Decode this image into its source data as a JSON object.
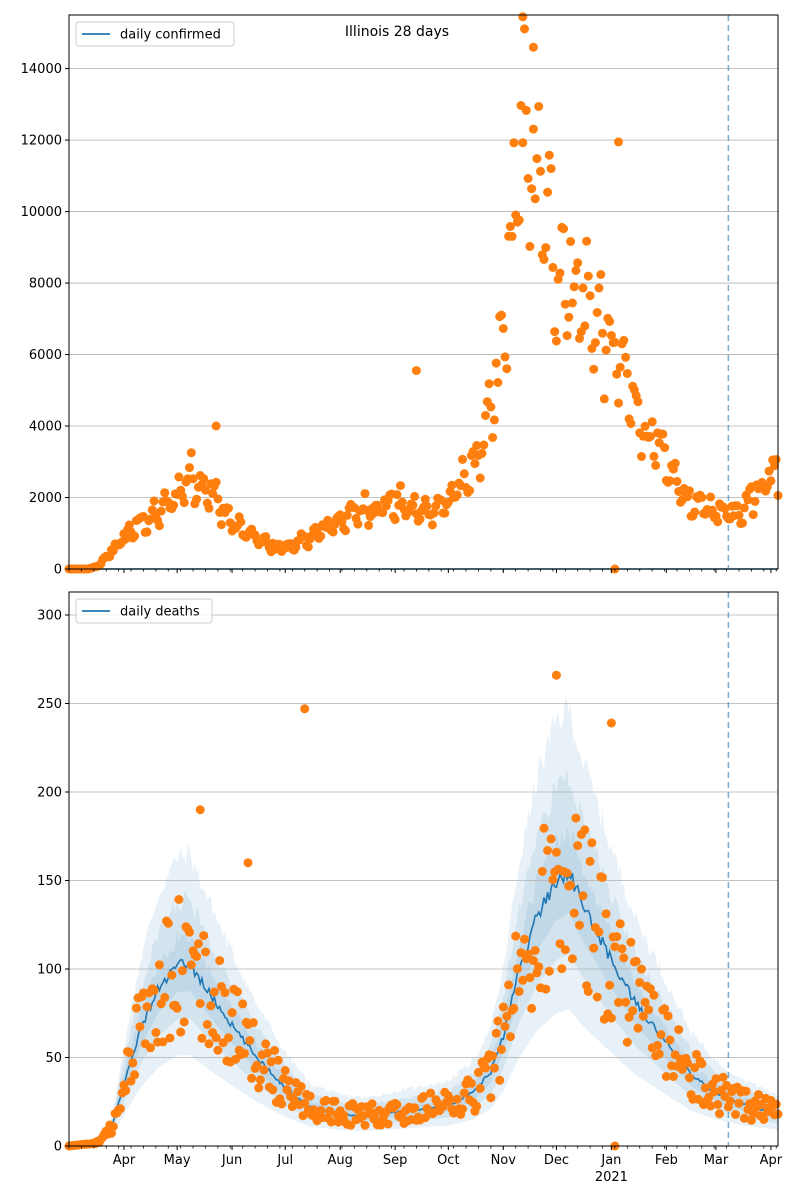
{
  "chart_data": [
    {
      "type": "scatter",
      "title": "Illinois 28 days",
      "legend": {
        "label": "daily confirmed",
        "placement": "top-left"
      },
      "xlim": [
        "2020-03-01",
        "2021-04-05"
      ],
      "ylim": [
        0,
        15500
      ],
      "yticks": [
        0,
        2000,
        4000,
        6000,
        8000,
        10000,
        12000,
        14000
      ],
      "grid": "horizontal",
      "vline_date": "2021-03-08",
      "colors": {
        "line": "#1f77b4",
        "points": "#ff7f0e",
        "vline": "#1f77b4"
      },
      "anchors": [
        [
          "2020-03-01",
          0
        ],
        [
          "2020-03-12",
          0
        ],
        [
          "2020-03-18",
          100
        ],
        [
          "2020-03-25",
          500
        ],
        [
          "2020-04-01",
          900
        ],
        [
          "2020-04-10",
          1300
        ],
        [
          "2020-04-20",
          1550
        ],
        [
          "2020-05-01",
          2100
        ],
        [
          "2020-05-07",
          2600
        ],
        [
          "2020-05-13",
          2550
        ],
        [
          "2020-05-20",
          2200
        ],
        [
          "2020-06-01",
          1300
        ],
        [
          "2020-06-15",
          850
        ],
        [
          "2020-06-25",
          620
        ],
        [
          "2020-07-05",
          650
        ],
        [
          "2020-07-15",
          900
        ],
        [
          "2020-08-01",
          1400
        ],
        [
          "2020-08-15",
          1700
        ],
        [
          "2020-09-01",
          1900
        ],
        [
          "2020-09-15",
          1600
        ],
        [
          "2020-10-01",
          1900
        ],
        [
          "2020-10-15",
          2900
        ],
        [
          "2020-10-25",
          4200
        ],
        [
          "2020-11-01",
          6500
        ],
        [
          "2020-11-07",
          10200
        ],
        [
          "2020-11-14",
          12500
        ],
        [
          "2020-11-21",
          10500
        ],
        [
          "2020-12-01",
          8800
        ],
        [
          "2020-12-15",
          7800
        ],
        [
          "2021-01-01",
          6300
        ],
        [
          "2021-01-10",
          5200
        ],
        [
          "2021-01-20",
          4000
        ],
        [
          "2021-02-01",
          2900
        ],
        [
          "2021-02-15",
          1850
        ],
        [
          "2021-03-01",
          1650
        ],
        [
          "2021-03-15",
          1700
        ],
        [
          "2021-03-25",
          2300
        ],
        [
          "2021-04-05",
          2900
        ]
      ],
      "outliers": [
        [
          "2020-05-23",
          4000
        ],
        [
          "2020-09-13",
          5550
        ],
        [
          "2020-11-12",
          15450
        ],
        [
          "2020-11-18",
          14600
        ],
        [
          "2021-01-05",
          11950
        ],
        [
          "2021-01-03",
          0
        ]
      ]
    },
    {
      "type": "scatter",
      "legend": {
        "label": "daily deaths",
        "placement": "top-left"
      },
      "xlim": [
        "2020-03-01",
        "2021-04-05"
      ],
      "ylim": [
        0,
        313
      ],
      "yticks": [
        0,
        50,
        100,
        150,
        200,
        250,
        300
      ],
      "grid": "horizontal",
      "vline_date": "2021-03-08",
      "colors": {
        "line": "#1f77b4",
        "points": "#ff7f0e",
        "band": "#1f77b4",
        "vline": "#1f77b4"
      },
      "line": [
        [
          "2020-03-01",
          0
        ],
        [
          "2020-03-18",
          2
        ],
        [
          "2020-03-25",
          10
        ],
        [
          "2020-04-01",
          35
        ],
        [
          "2020-04-10",
          65
        ],
        [
          "2020-04-20",
          88
        ],
        [
          "2020-05-01",
          102
        ],
        [
          "2020-05-08",
          103
        ],
        [
          "2020-05-20",
          85
        ],
        [
          "2020-06-01",
          68
        ],
        [
          "2020-06-15",
          50
        ],
        [
          "2020-07-01",
          33
        ],
        [
          "2020-07-15",
          22
        ],
        [
          "2020-08-01",
          18
        ],
        [
          "2020-08-15",
          17
        ],
        [
          "2020-09-01",
          19
        ],
        [
          "2020-09-15",
          21
        ],
        [
          "2020-10-01",
          23
        ],
        [
          "2020-10-15",
          30
        ],
        [
          "2020-10-25",
          42
        ],
        [
          "2020-11-01",
          62
        ],
        [
          "2020-11-10",
          100
        ],
        [
          "2020-11-20",
          130
        ],
        [
          "2020-12-01",
          150
        ],
        [
          "2020-12-08",
          155
        ],
        [
          "2020-12-15",
          138
        ],
        [
          "2021-01-01",
          105
        ],
        [
          "2021-01-15",
          80
        ],
        [
          "2021-02-01",
          58
        ],
        [
          "2021-02-15",
          40
        ],
        [
          "2021-03-01",
          30
        ],
        [
          "2021-03-15",
          24
        ],
        [
          "2021-04-05",
          18
        ]
      ],
      "bands": [
        {
          "lower": 0.5,
          "upper": 1.6
        },
        {
          "lower": 0.7,
          "upper": 1.35
        },
        {
          "lower": 0.85,
          "upper": 1.15
        }
      ],
      "outliers": [
        [
          "2020-05-14",
          190
        ],
        [
          "2020-06-10",
          160
        ],
        [
          "2020-07-12",
          247
        ],
        [
          "2020-12-01",
          266
        ],
        [
          "2021-01-01",
          239
        ],
        [
          "2021-01-03",
          0
        ]
      ]
    }
  ],
  "axis": {
    "month_labels": [
      "Apr",
      "May",
      "Jun",
      "Jul",
      "Aug",
      "Sep",
      "Oct",
      "Nov",
      "Dec",
      "Jan",
      "Feb",
      "Mar",
      "Apr"
    ],
    "year_label": "2021"
  }
}
